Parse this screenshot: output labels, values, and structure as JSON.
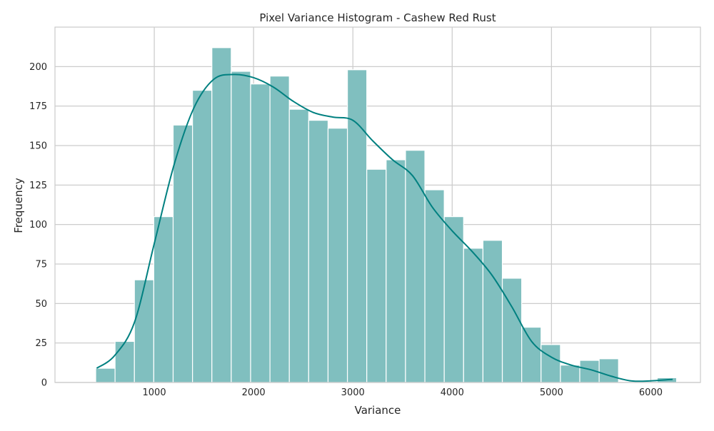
{
  "chart_data": {
    "type": "bar",
    "title": "Pixel Variance Histogram - Cashew Red Rust",
    "xlabel": "Variance",
    "ylabel": "Frequency",
    "xlim": [
      0,
      6500
    ],
    "ylim": [
      0,
      225
    ],
    "xticks": [
      1000,
      2000,
      3000,
      4000,
      5000,
      6000
    ],
    "yticks": [
      0,
      25,
      50,
      75,
      100,
      125,
      150,
      175,
      200
    ],
    "grid": true,
    "legend": "none",
    "colors": {
      "bar_fill": "#80bfbf",
      "bar_edge": "#ffffff",
      "kde_line": "#008080",
      "grid": "#cccccc",
      "frame": "#cccccc"
    },
    "bins": [
      {
        "start": 410,
        "end": 605,
        "count": 9
      },
      {
        "start": 605,
        "end": 800,
        "count": 26
      },
      {
        "start": 800,
        "end": 995,
        "count": 65
      },
      {
        "start": 995,
        "end": 1190,
        "count": 105
      },
      {
        "start": 1190,
        "end": 1385,
        "count": 163
      },
      {
        "start": 1385,
        "end": 1580,
        "count": 185
      },
      {
        "start": 1580,
        "end": 1775,
        "count": 212
      },
      {
        "start": 1775,
        "end": 1970,
        "count": 197
      },
      {
        "start": 1970,
        "end": 2165,
        "count": 189
      },
      {
        "start": 2165,
        "end": 2360,
        "count": 194
      },
      {
        "start": 2360,
        "end": 2555,
        "count": 173
      },
      {
        "start": 2555,
        "end": 2750,
        "count": 166
      },
      {
        "start": 2750,
        "end": 2945,
        "count": 161
      },
      {
        "start": 2945,
        "end": 3140,
        "count": 198
      },
      {
        "start": 3140,
        "end": 3335,
        "count": 135
      },
      {
        "start": 3335,
        "end": 3530,
        "count": 141
      },
      {
        "start": 3530,
        "end": 3725,
        "count": 147
      },
      {
        "start": 3725,
        "end": 3920,
        "count": 122
      },
      {
        "start": 3920,
        "end": 4115,
        "count": 105
      },
      {
        "start": 4115,
        "end": 4310,
        "count": 85
      },
      {
        "start": 4310,
        "end": 4505,
        "count": 90
      },
      {
        "start": 4505,
        "end": 4700,
        "count": 66
      },
      {
        "start": 4700,
        "end": 4895,
        "count": 35
      },
      {
        "start": 4895,
        "end": 5090,
        "count": 24
      },
      {
        "start": 5090,
        "end": 5285,
        "count": 11
      },
      {
        "start": 5285,
        "end": 5480,
        "count": 14
      },
      {
        "start": 5480,
        "end": 5675,
        "count": 15
      },
      {
        "start": 5675,
        "end": 5870,
        "count": 0
      },
      {
        "start": 5870,
        "end": 6065,
        "count": 0
      },
      {
        "start": 6065,
        "end": 6260,
        "count": 3
      }
    ],
    "kde": {
      "x": [
        420,
        600,
        800,
        1000,
        1200,
        1400,
        1600,
        1800,
        2000,
        2200,
        2400,
        2600,
        2800,
        3000,
        3200,
        3400,
        3600,
        3800,
        4000,
        4200,
        4400,
        4600,
        4800,
        5000,
        5200,
        5400,
        5600,
        5800,
        6000,
        6220
      ],
      "y": [
        9,
        17,
        38,
        88,
        138,
        174,
        192,
        195,
        193,
        187,
        178,
        171,
        168,
        166,
        153,
        141,
        131,
        111,
        96,
        83,
        68,
        48,
        26,
        16,
        11,
        8,
        4,
        1,
        1,
        2
      ]
    }
  }
}
